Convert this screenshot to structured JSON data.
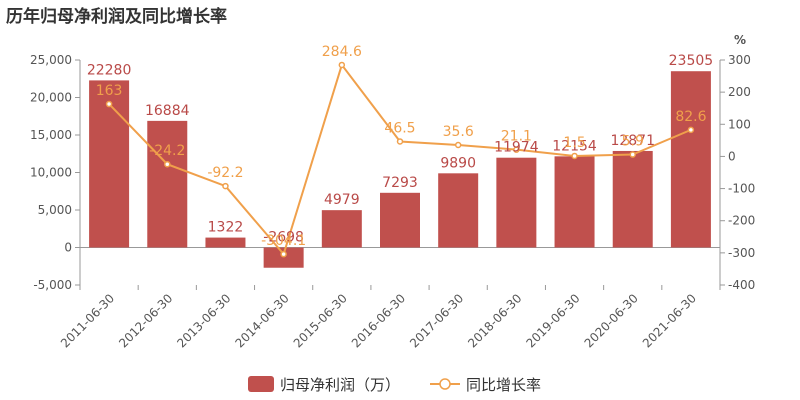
{
  "chart_data": {
    "type": "bar",
    "title": "历年归母净利润及同比增长率",
    "categories": [
      "2011-06-30",
      "2012-06-30",
      "2013-06-30",
      "2014-06-30",
      "2015-06-30",
      "2016-06-30",
      "2017-06-30",
      "2018-06-30",
      "2019-06-30",
      "2020-06-30",
      "2021-06-30"
    ],
    "series": [
      {
        "name": "归母净利润（万）",
        "type": "bar",
        "axis": "left",
        "values": [
          22280,
          16884,
          1322,
          -2698,
          4979,
          7293,
          9890,
          11974,
          12154,
          12871,
          23505
        ],
        "labels": [
          "22280",
          "16884",
          "1322",
          "-2698",
          "4979",
          "7293",
          "9890",
          "11974",
          "12154",
          "12871",
          "23505"
        ]
      },
      {
        "name": "同比增长率",
        "type": "line",
        "axis": "right",
        "values": [
          163,
          -24.2,
          -92.2,
          -304.1,
          284.6,
          46.5,
          35.6,
          21.1,
          1.5,
          5.9,
          82.6
        ],
        "labels": [
          "163",
          "-24.2",
          "-92.2",
          "-304.1",
          "284.6",
          "46.5",
          "35.6",
          "21.1",
          "1.5",
          "5.9",
          "82.6"
        ]
      }
    ],
    "y_left": {
      "min": -5000,
      "max": 25000,
      "ticks": [
        "-5,000",
        "0",
        "5,000",
        "10,000",
        "15,000",
        "20,000",
        "25,000"
      ],
      "tick_values": [
        -5000,
        0,
        5000,
        10000,
        15000,
        20000,
        25000
      ]
    },
    "y_right": {
      "label": "%",
      "min": -400,
      "max": 300,
      "ticks": [
        "-400",
        "-300",
        "-200",
        "-100",
        "0",
        "100",
        "200",
        "300"
      ],
      "tick_values": [
        -400,
        -300,
        -200,
        -100,
        0,
        100,
        200,
        300
      ]
    },
    "grid": false,
    "legend_position": "bottom-center",
    "colors": {
      "bar": "#c0504d",
      "line": "#f0a04b",
      "bar_label": "#b94a48",
      "line_label": "#f0a04b",
      "axis": "#999999"
    }
  }
}
